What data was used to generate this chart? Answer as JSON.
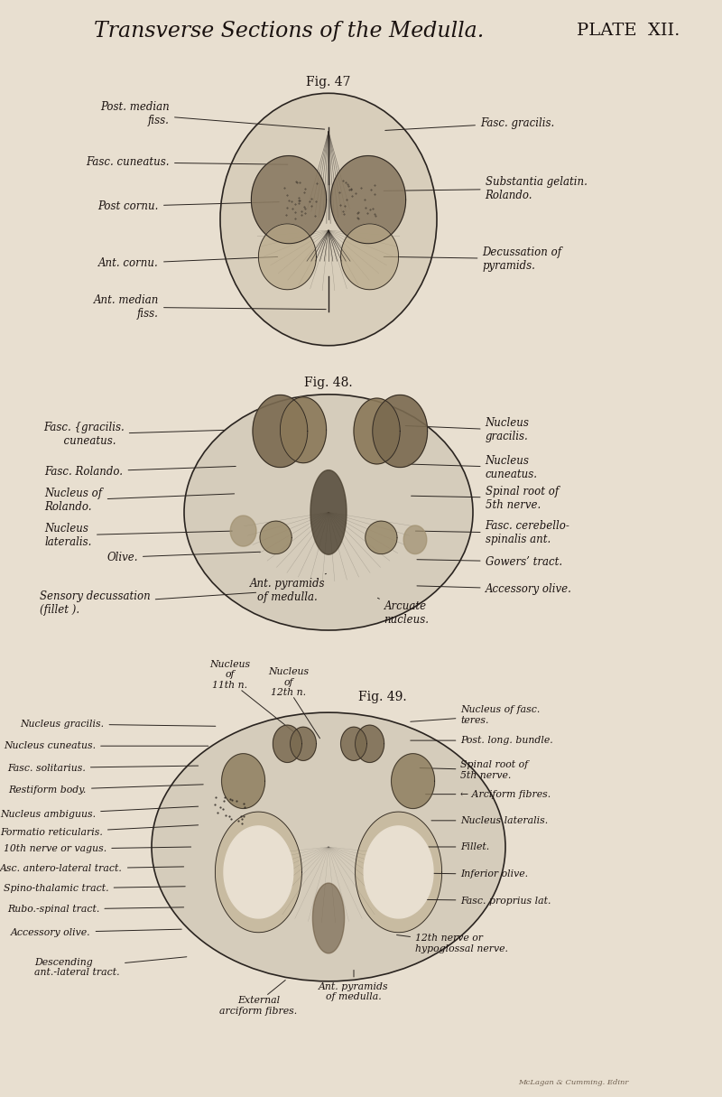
{
  "background_color": "#e8dfd0",
  "title": "Transverse Sections of the Medulla.",
  "plate": "PLATE  XII.",
  "publisher": "McLagan & Cumming. Edinr",
  "title_fontsize": 17,
  "plate_fontsize": 14,
  "fig47_label": "Fig. 47",
  "fig48_label": "Fig. 48.",
  "fig49_label": "Fig. 49.",
  "line_color": "#2a2420",
  "text_color": "#1a1210"
}
